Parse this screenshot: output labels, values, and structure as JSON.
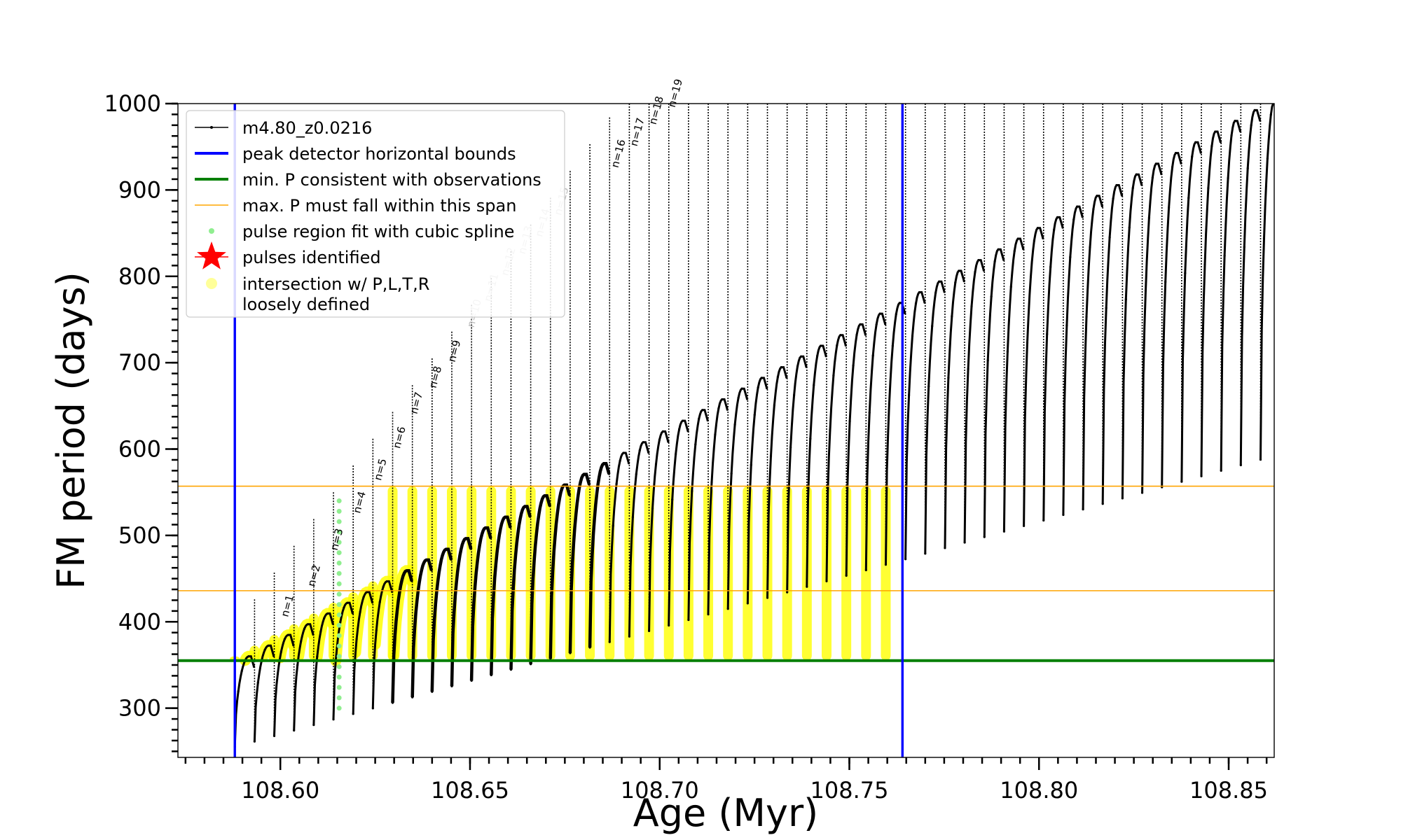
{
  "chart_data": {
    "type": "line",
    "xlabel": "Age (Myr)",
    "ylabel": "FM period (days)",
    "xlim": [
      108.573,
      108.862
    ],
    "ylim": [
      243,
      1000
    ],
    "xticks": [
      108.6,
      108.65,
      108.7,
      108.75,
      108.8,
      108.85
    ],
    "xtick_labels": [
      "108.60",
      "108.65",
      "108.70",
      "108.75",
      "108.80",
      "108.85"
    ],
    "yticks": [
      300,
      400,
      500,
      600,
      700,
      800,
      900,
      1000
    ],
    "ytick_labels": [
      "300",
      "400",
      "500",
      "600",
      "700",
      "800",
      "900",
      "1000"
    ],
    "legend_position": "upper-left",
    "legend": [
      {
        "key": "model",
        "label": "m4.80_z0.0216",
        "marker": "line-dot",
        "color": "#000000"
      },
      {
        "key": "bounds",
        "label": "peak detector horizontal bounds",
        "marker": "line",
        "color": "#0000ff"
      },
      {
        "key": "minp",
        "label": "min. P consistent with observations",
        "marker": "line",
        "color": "#007f00"
      },
      {
        "key": "maxp",
        "label": "max. P must fall within this span",
        "marker": "thin-line",
        "color": "#ffa500"
      },
      {
        "key": "spline",
        "label": "pulse region fit with cubic spline",
        "marker": "dot",
        "color": "#90ee90"
      },
      {
        "key": "pulses",
        "label": "pulses identified",
        "marker": "star",
        "color": "#ff0000"
      },
      {
        "key": "loose",
        "label": "intersection w/ P,L,T,R",
        "label2": "loosely defined",
        "marker": "dot",
        "color": "#ffff99"
      }
    ],
    "vertical_lines": {
      "x": [
        108.588,
        108.764
      ],
      "color": "#0000ff"
    },
    "horizontal_lines": [
      {
        "name": "min. P consistent with observations",
        "y": 355,
        "color": "#007f00"
      },
      {
        "name": "max. P span lower",
        "y": 436,
        "color": "#ffa500"
      },
      {
        "name": "max. P span upper",
        "y": 557,
        "color": "#ffa500"
      }
    ],
    "pulse_labels": [
      {
        "text": "n=1",
        "x": 108.602,
        "y": 405
      },
      {
        "text": "n=2",
        "x": 108.609,
        "y": 440
      },
      {
        "text": "n=3",
        "x": 108.615,
        "y": 482
      },
      {
        "text": "n=4",
        "x": 108.621,
        "y": 525
      },
      {
        "text": "n=5",
        "x": 108.6265,
        "y": 563
      },
      {
        "text": "n=6",
        "x": 108.6315,
        "y": 600
      },
      {
        "text": "n=7",
        "x": 108.636,
        "y": 640
      },
      {
        "text": "n=8",
        "x": 108.641,
        "y": 670
      },
      {
        "text": "n=9",
        "x": 108.646,
        "y": 700
      },
      {
        "text": "n=10",
        "x": 108.651,
        "y": 740
      },
      {
        "text": "n=11",
        "x": 108.6555,
        "y": 770
      },
      {
        "text": "n=12",
        "x": 108.66,
        "y": 800
      },
      {
        "text": "n=13",
        "x": 108.6645,
        "y": 825
      },
      {
        "text": "n=14",
        "x": 108.669,
        "y": 845
      },
      {
        "text": "n=15",
        "x": 108.674,
        "y": 870
      },
      {
        "text": "n=16",
        "x": 108.689,
        "y": 925
      },
      {
        "text": "n=17",
        "x": 108.694,
        "y": 950
      },
      {
        "text": "n=18",
        "x": 108.699,
        "y": 975
      },
      {
        "text": "n=19",
        "x": 108.704,
        "y": 995
      }
    ],
    "labels_faded": [
      "n=10",
      "n=11",
      "n=12",
      "n=13",
      "n=14",
      "n=15"
    ],
    "series": [
      {
        "key": "model",
        "name": "m4.80_z0.0216",
        "color": "#000000",
        "pulse_start_x": 108.588,
        "pulse_spacing": 0.0052,
        "pulse_count": 54,
        "baseline_start": 255,
        "baseline_slope_per_pulse": 6.4,
        "plateau_start": 360,
        "plateau_slope_per_pulse": 12.4,
        "spike_start": 395,
        "spike_slope_per_pulse": 31,
        "ymax_clip": 1000
      }
    ]
  }
}
